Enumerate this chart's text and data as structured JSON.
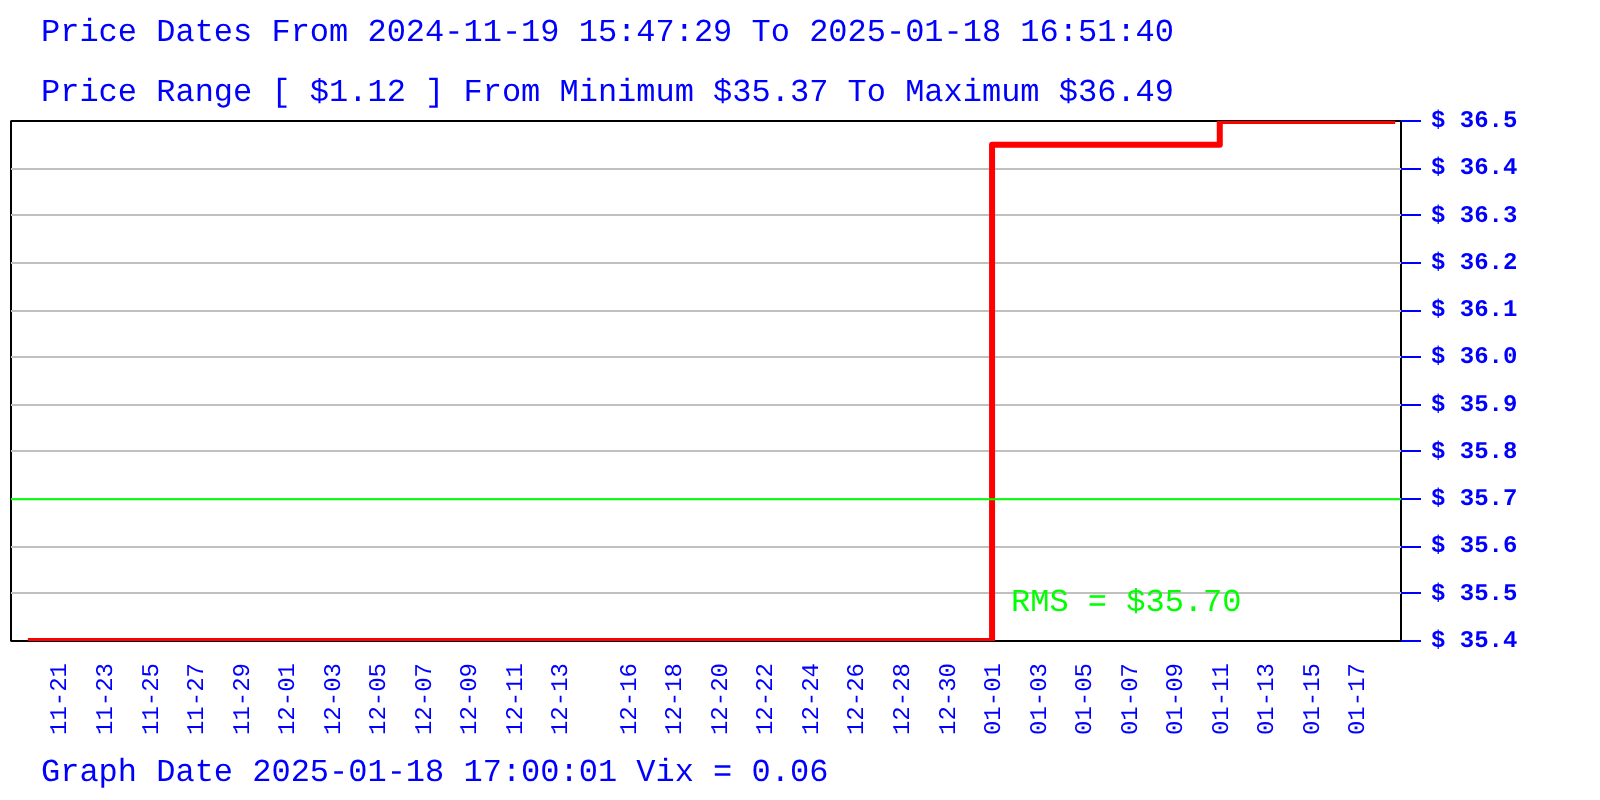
{
  "chart_data": {
    "type": "step",
    "title": "Price Dates From 2024-11-19 15:47:29 To 2025-01-18 16:51:40",
    "subtitle": "Price Range [ $1.12 ] From Minimum $35.37 To Maximum $36.49",
    "annotations": [
      "Graph Date 2025-01-18 17:00:01 Vix = 0.06"
    ],
    "series": [
      {
        "color": "#ff0000",
        "x": [
          "2024-11-19T15:47",
          "2025-01-01T00:00",
          "2025-01-11T00:00",
          "2025-01-18T16:51"
        ],
        "values": [
          35.4,
          36.45,
          36.5,
          36.5
        ]
      }
    ],
    "xlim": [
      "2024-11-18T22:00",
      "2025-01-18T23:00"
    ],
    "xticks": [
      {
        "value": "2024-11-21",
        "label": "11-21"
      },
      {
        "value": "2024-11-23",
        "label": "11-23"
      },
      {
        "value": "2024-11-25",
        "label": "11-25"
      },
      {
        "value": "2024-11-27",
        "label": "11-27"
      },
      {
        "value": "2024-11-29",
        "label": "11-29"
      },
      {
        "value": "2024-12-01",
        "label": "12-01"
      },
      {
        "value": "2024-12-03",
        "label": "12-03"
      },
      {
        "value": "2024-12-05",
        "label": "12-05"
      },
      {
        "value": "2024-12-07",
        "label": "12-07"
      },
      {
        "value": "2024-12-09",
        "label": "12-09"
      },
      {
        "value": "2024-12-11",
        "label": "12-11"
      },
      {
        "value": "2024-12-13",
        "label": "12-13"
      },
      {
        "value": "2024-12-16",
        "label": "12-16"
      },
      {
        "value": "2024-12-18",
        "label": "12-18"
      },
      {
        "value": "2024-12-20",
        "label": "12-20"
      },
      {
        "value": "2024-12-22",
        "label": "12-22"
      },
      {
        "value": "2024-12-24",
        "label": "12-24"
      },
      {
        "value": "2024-12-26",
        "label": "12-26"
      },
      {
        "value": "2024-12-28",
        "label": "12-28"
      },
      {
        "value": "2024-12-30",
        "label": "12-30"
      },
      {
        "value": "2025-01-01",
        "label": "01-01"
      },
      {
        "value": "2025-01-03",
        "label": "01-03"
      },
      {
        "value": "2025-01-05",
        "label": "01-05"
      },
      {
        "value": "2025-01-07",
        "label": "01-07"
      },
      {
        "value": "2025-01-09",
        "label": "01-09"
      },
      {
        "value": "2025-01-11",
        "label": "01-11"
      },
      {
        "value": "2025-01-13",
        "label": "01-13"
      },
      {
        "value": "2025-01-15",
        "label": "01-15"
      },
      {
        "value": "2025-01-17",
        "label": "01-17"
      }
    ],
    "ylim": [
      35.4,
      36.5
    ],
    "yticks": [
      {
        "value": 35.4,
        "label": "$ 35.4"
      },
      {
        "value": 35.5,
        "label": "$ 35.5"
      },
      {
        "value": 35.6,
        "label": "$ 35.6"
      },
      {
        "value": 35.7,
        "label": "$ 35.7"
      },
      {
        "value": 35.8,
        "label": "$ 35.8"
      },
      {
        "value": 35.9,
        "label": "$ 35.9"
      },
      {
        "value": 36.0,
        "label": "$ 36.0"
      },
      {
        "value": 36.1,
        "label": "$ 36.1"
      },
      {
        "value": 36.2,
        "label": "$ 36.2"
      },
      {
        "value": 36.3,
        "label": "$ 36.3"
      },
      {
        "value": 36.4,
        "label": "$ 36.4"
      },
      {
        "value": 36.5,
        "label": "$ 36.5"
      }
    ],
    "ref_lines": [
      {
        "axis": "y",
        "value": 35.7,
        "label": "RMS = $35.70",
        "color": "#00ff00"
      }
    ],
    "grid": "y"
  }
}
